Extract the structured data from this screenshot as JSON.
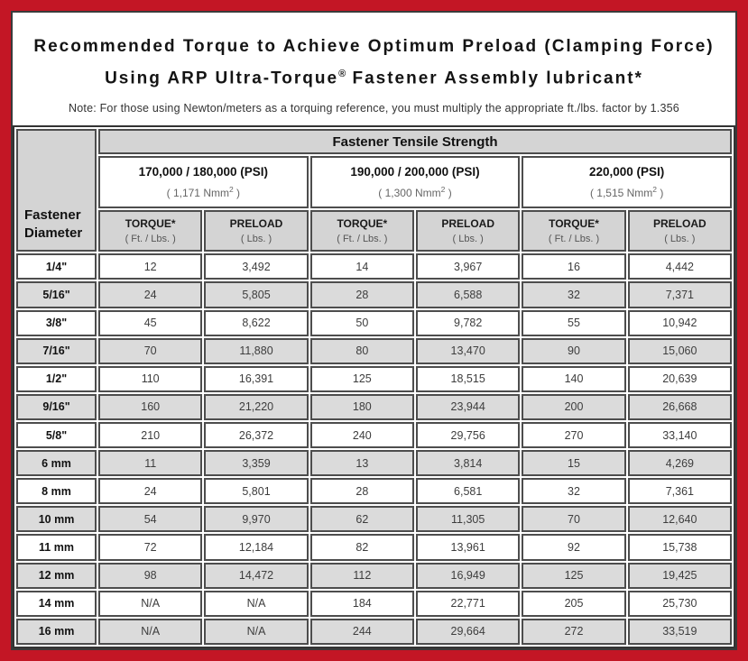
{
  "colors": {
    "frame_red": "#C31625",
    "inner_border": "#3a3a3a",
    "header_gray": "#D4D4D4",
    "stripe_gray": "#DBDBDB"
  },
  "title": {
    "line1": "Recommended Torque to Achieve Optimum Preload (Clamping Force)",
    "line2_before_reg": "Using ARP Ultra-Torque",
    "registered_mark": "®",
    "line2_after_reg": " Fastener Assembly lubricant*"
  },
  "note": "Note: For those using Newton/meters as a torquing reference, you must multiply the appropriate ft./lbs. factor by 1.356",
  "table": {
    "corner_header_line1": "Fastener",
    "corner_header_line2": "Diameter",
    "main_header": "Fastener Tensile Strength",
    "strength_groups": [
      {
        "psi": "170,000 / 180,000 (PSI)",
        "metric_before_sup": "( 1,171 Nmm",
        "metric_sup": "2",
        "metric_after_sup": " )"
      },
      {
        "psi": "190,000 / 200,000 (PSI)",
        "metric_before_sup": "( 1,300 Nmm",
        "metric_sup": "2",
        "metric_after_sup": " )"
      },
      {
        "psi": "220,000 (PSI)",
        "metric_before_sup": "( 1,515 Nmm",
        "metric_sup": "2",
        "metric_after_sup": " )"
      }
    ],
    "column_headers": [
      {
        "label": "TORQUE*",
        "unit": "( Ft. / Lbs. )"
      },
      {
        "label": "PRELOAD",
        "unit": "( Lbs. )"
      },
      {
        "label": "TORQUE*",
        "unit": "( Ft. / Lbs. )"
      },
      {
        "label": "PRELOAD",
        "unit": "( Lbs. )"
      },
      {
        "label": "TORQUE*",
        "unit": "( Ft. / Lbs. )"
      },
      {
        "label": "PRELOAD",
        "unit": "( Lbs. )"
      }
    ],
    "rows": [
      {
        "diameter": "1/4\"",
        "values": [
          "12",
          "3,492",
          "14",
          "3,967",
          "16",
          "4,442"
        ]
      },
      {
        "diameter": "5/16\"",
        "values": [
          "24",
          "5,805",
          "28",
          "6,588",
          "32",
          "7,371"
        ]
      },
      {
        "diameter": "3/8\"",
        "values": [
          "45",
          "8,622",
          "50",
          "9,782",
          "55",
          "10,942"
        ]
      },
      {
        "diameter": "7/16\"",
        "values": [
          "70",
          "11,880",
          "80",
          "13,470",
          "90",
          "15,060"
        ]
      },
      {
        "diameter": "1/2\"",
        "values": [
          "110",
          "16,391",
          "125",
          "18,515",
          "140",
          "20,639"
        ]
      },
      {
        "diameter": "9/16\"",
        "values": [
          "160",
          "21,220",
          "180",
          "23,944",
          "200",
          "26,668"
        ]
      },
      {
        "diameter": "5/8\"",
        "values": [
          "210",
          "26,372",
          "240",
          "29,756",
          "270",
          "33,140"
        ]
      },
      {
        "diameter": "6 mm",
        "values": [
          "11",
          "3,359",
          "13",
          "3,814",
          "15",
          "4,269"
        ]
      },
      {
        "diameter": "8 mm",
        "values": [
          "24",
          "5,801",
          "28",
          "6,581",
          "32",
          "7,361"
        ]
      },
      {
        "diameter": "10 mm",
        "values": [
          "54",
          "9,970",
          "62",
          "11,305",
          "70",
          "12,640"
        ]
      },
      {
        "diameter": "11 mm",
        "values": [
          "72",
          "12,184",
          "82",
          "13,961",
          "92",
          "15,738"
        ]
      },
      {
        "diameter": "12 mm",
        "values": [
          "98",
          "14,472",
          "112",
          "16,949",
          "125",
          "19,425"
        ]
      },
      {
        "diameter": "14 mm",
        "values": [
          "N/A",
          "N/A",
          "184",
          "22,771",
          "205",
          "25,730"
        ]
      },
      {
        "diameter": "16 mm",
        "values": [
          "N/A",
          "N/A",
          "244",
          "29,664",
          "272",
          "33,519"
        ]
      }
    ]
  }
}
